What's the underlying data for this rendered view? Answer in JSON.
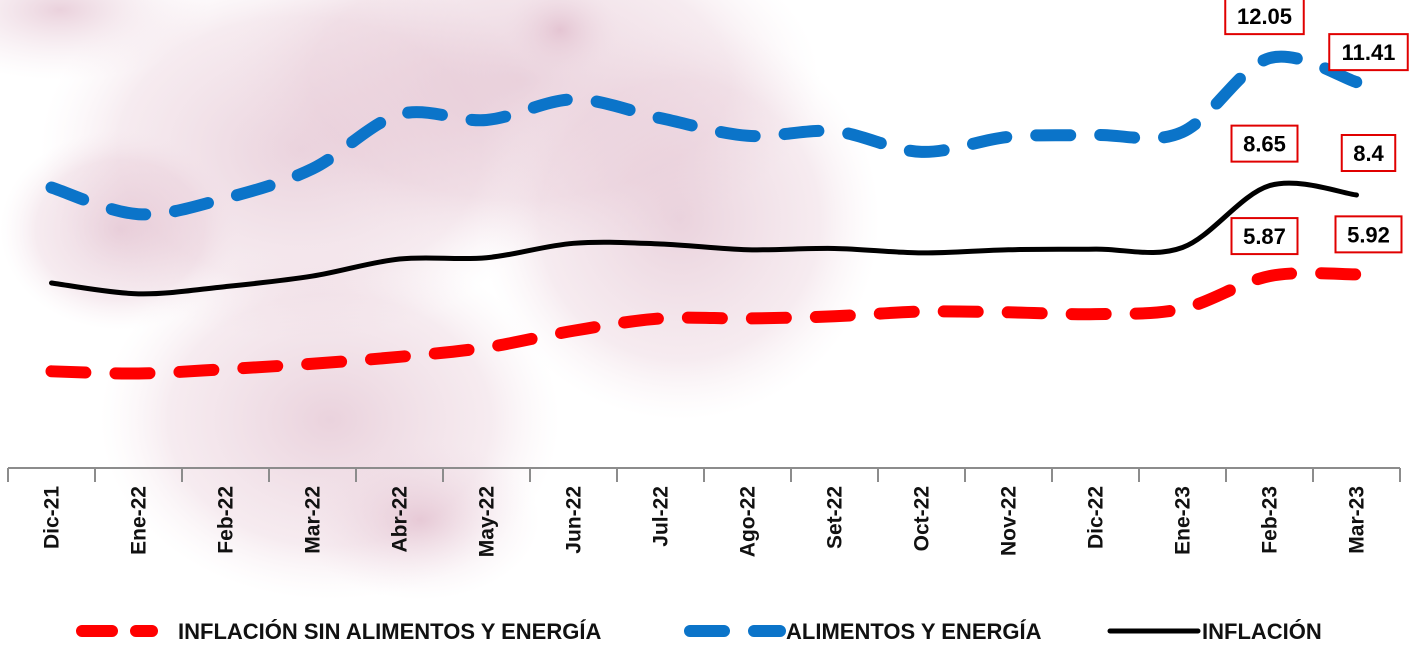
{
  "chart_data": {
    "type": "line",
    "categories": [
      "Dic-21",
      "Ene-22",
      "Feb-22",
      "Mar-22",
      "Abr-22",
      "May-22",
      "Jun-22",
      "Jul-22",
      "Ago-22",
      "Set-22",
      "Oct-22",
      "Nov-22",
      "Dic-22",
      "Ene-23",
      "Feb-23",
      "Mar-23"
    ],
    "series": [
      {
        "name": "INFLACIÓN SIN ALIMENTOS Y ENERGÍA",
        "color": "#ff0000",
        "style": "dashed",
        "values": [
          3.24,
          3.18,
          3.3,
          3.45,
          3.64,
          3.9,
          4.36,
          4.7,
          4.7,
          4.76,
          4.89,
          4.87,
          4.82,
          4.97,
          5.87,
          5.92
        ],
        "point_labels": {
          "14": "5.87",
          "15": "5.92"
        }
      },
      {
        "name": "ALIMENTOS Y ENERGÍA",
        "color": "#0b74c9",
        "style": "dashed",
        "values": [
          8.6,
          7.8,
          8.3,
          9.1,
          10.55,
          10.4,
          10.95,
          10.45,
          9.98,
          10.1,
          9.55,
          9.95,
          10.0,
          10.08,
          12.05,
          11.41
        ],
        "point_labels": {
          "14": "12.05",
          "15": "11.41"
        }
      },
      {
        "name": "INFLACIÓN",
        "color": "#000000",
        "style": "solid",
        "values": [
          5.68,
          5.38,
          5.58,
          5.87,
          6.4,
          6.44,
          6.89,
          6.87,
          6.69,
          6.73,
          6.59,
          6.69,
          6.71,
          6.76,
          8.65,
          8.4
        ],
        "point_labels": {
          "14": "8.65",
          "15": "8.4"
        }
      }
    ],
    "legend": {
      "position": "bottom"
    },
    "grid": false,
    "xlabel": "",
    "ylabel": ""
  }
}
